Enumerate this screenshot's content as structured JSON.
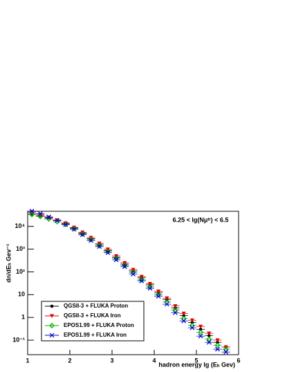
{
  "chart_data": {
    "type": "scatter",
    "annotation": "6.25 < lg(Nμᵗʳ) < 6.5",
    "x_label": "hadron energy lg (Eₕ Gev)",
    "y_label": "dn/dEₕ Gev⁻¹",
    "log_y": true,
    "legend": "bottom-left",
    "xlim": [
      1,
      6
    ],
    "xticks": [
      1,
      2,
      3,
      4,
      5,
      6
    ],
    "ylim": [
      0.023,
      46000
    ],
    "yticks": [
      {
        "value": 0.1,
        "label": "10⁻¹"
      },
      1,
      10,
      {
        "value": 100,
        "label": "10²"
      },
      {
        "value": 1000,
        "label": "10³"
      },
      {
        "value": 10000,
        "label": "10⁴"
      }
    ],
    "x": [
      1.1,
      1.3,
      1.5,
      1.7,
      1.9,
      2.1,
      2.3,
      2.5,
      2.7,
      2.9,
      3.1,
      3.3,
      3.5,
      3.7,
      3.9,
      4.1,
      4.3,
      4.5,
      4.7,
      4.9,
      5.1,
      5.3,
      5.5,
      5.7
    ],
    "series": [
      {
        "name": "QGSII-3 + FLUKA Proton",
        "color": "#000000",
        "marker": "circle",
        "values": [
          35000,
          29000,
          23000,
          18000,
          13000,
          8500,
          5000,
          2900,
          1600,
          880,
          440,
          220,
          110,
          55,
          27,
          12,
          6,
          2.6,
          1.2,
          0.6,
          0.3,
          0.16,
          0.08,
          0.05
        ]
      },
      {
        "name": "QGSII-3 + FLUKA Iron",
        "color": "#e00000",
        "marker": "triangle-down",
        "values": [
          42000,
          33000,
          25000,
          19000,
          14000,
          9000,
          5500,
          3200,
          1800,
          980,
          500,
          250,
          125,
          62,
          30,
          14,
          7,
          3.2,
          1.5,
          0.75,
          0.4,
          0.2,
          0.1,
          0.05
        ]
      },
      {
        "name": "EPOS1.99 + FLUKA Proton",
        "color": "#00b000",
        "marker": "diamond",
        "values": [
          33000,
          27000,
          21000,
          16000,
          12000,
          7800,
          4600,
          2600,
          1400,
          780,
          390,
          190,
          95,
          45,
          22,
          10,
          4.8,
          2.1,
          0.9,
          0.45,
          0.22,
          0.11,
          0.06,
          0.04
        ]
      },
      {
        "name": "EPOS1.99 + FLUKA Iron",
        "color": "#0000cc",
        "marker": "cross",
        "values": [
          47000,
          36000,
          26000,
          18000,
          12000,
          7500,
          4300,
          2400,
          1300,
          700,
          340,
          170,
          80,
          40,
          19,
          8.5,
          3.8,
          1.6,
          0.7,
          0.35,
          0.15,
          0.08,
          0.04,
          0.03
        ]
      }
    ]
  }
}
